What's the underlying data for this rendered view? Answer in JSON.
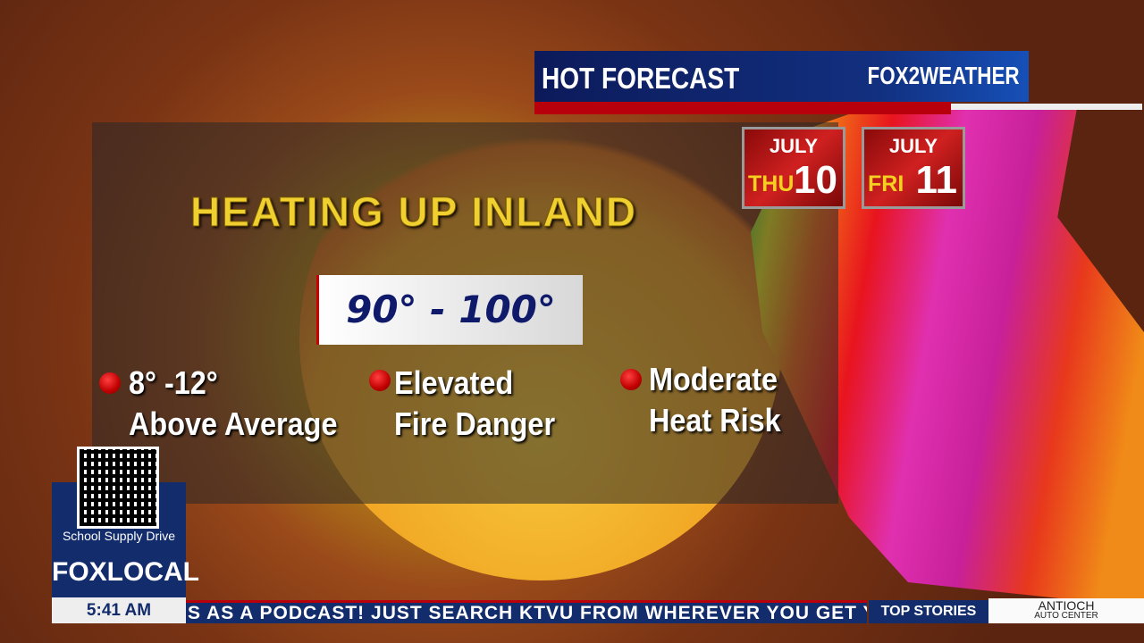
{
  "header": {
    "title": "HOT FORECAST",
    "logo": "FOX 2 KTVU WEATHER",
    "logo_text": "FOX2WEATHER"
  },
  "dates": [
    {
      "month": "JULY",
      "day": "THU",
      "num": "10"
    },
    {
      "month": "JULY",
      "day": "FRI",
      "num": "11"
    }
  ],
  "headline": "HEATING UP INLAND",
  "temp_range": "90° - 100°",
  "bullets": [
    {
      "line1": "8° -12°",
      "line2": "Above Average"
    },
    {
      "line1": "Elevated",
      "line2": "Fire Danger"
    },
    {
      "line1": "Moderate",
      "line2": "Heat Risk"
    }
  ],
  "promo": {
    "caption": "School Supply Drive"
  },
  "brand": {
    "fox": "FOX",
    "local": "LOCAL"
  },
  "time": "5:41 AM",
  "ticker": "S AS A PODCAST! JUST SEARCH KTVU FROM WHEREVER YOU GET Y",
  "ticker_label": "TOP STORIES",
  "sponsor": {
    "line1": "ANTIOCH",
    "line2": "AUTO CENTER"
  },
  "colors": {
    "navy": "#132c6c",
    "red": "#b8000c",
    "headline": "#f0d030"
  }
}
